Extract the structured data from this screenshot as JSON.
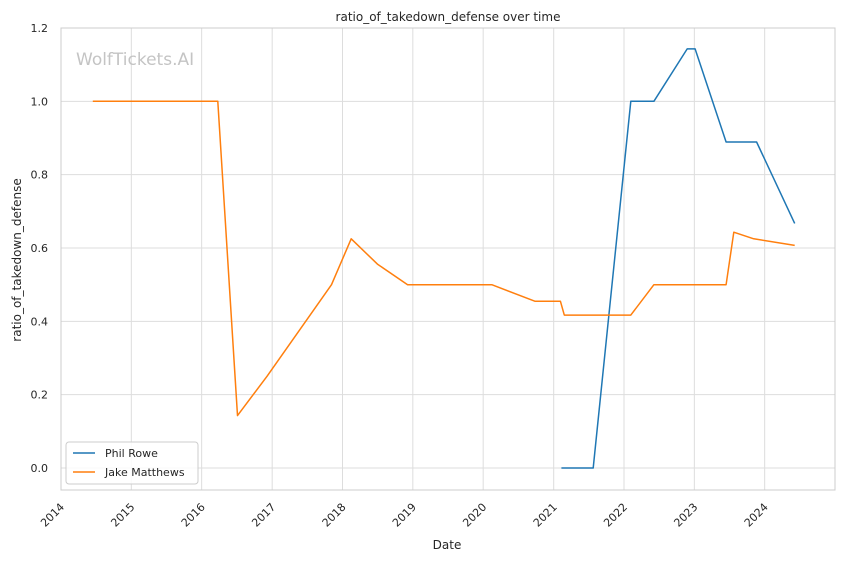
{
  "watermark": "WolfTickets.AI",
  "chart_data": {
    "type": "line",
    "title": "ratio_of_takedown_defense over time",
    "xlabel": "Date",
    "ylabel": "ratio_of_takedown_defense",
    "xlim": [
      "2014-01-01",
      "2024-12-31"
    ],
    "ylim": [
      -0.06,
      1.2
    ],
    "x_ticks": [
      "2014",
      "2015",
      "2016",
      "2017",
      "2018",
      "2019",
      "2020",
      "2021",
      "2022",
      "2023",
      "2024"
    ],
    "y_ticks": [
      "0.0",
      "0.2",
      "0.4",
      "0.6",
      "0.8",
      "1.0",
      "1.2"
    ],
    "grid": true,
    "legend_position": "lower-left",
    "series": [
      {
        "name": "Phil Rowe",
        "color": "#1f77b4",
        "x": [
          "2021-02-10",
          "2021-07-25",
          "2022-02-05",
          "2022-06-05",
          "2022-11-25",
          "2023-01-05",
          "2023-06-15",
          "2023-11-20",
          "2024-06-05"
        ],
        "y": [
          0.0,
          0.0,
          1.0,
          1.0,
          1.143,
          1.143,
          0.889,
          0.889,
          0.667
        ]
      },
      {
        "name": "Jake Matthews",
        "color": "#ff7f0e",
        "x": [
          "2014-06-15",
          "2016-03-25",
          "2016-07-05",
          "2016-12-05",
          "2017-11-05",
          "2018-02-15",
          "2018-07-01",
          "2018-12-05",
          "2019-04-15",
          "2020-02-15",
          "2020-09-25",
          "2021-02-05",
          "2021-02-25",
          "2021-07-05",
          "2022-02-05",
          "2022-06-05",
          "2023-06-15",
          "2023-07-25",
          "2023-11-05",
          "2024-06-05"
        ],
        "y": [
          1.0,
          1.0,
          0.143,
          0.25,
          0.5,
          0.625,
          0.556,
          0.5,
          0.5,
          0.5,
          0.455,
          0.455,
          0.417,
          0.417,
          0.417,
          0.5,
          0.5,
          0.643,
          0.625,
          0.607
        ]
      }
    ]
  }
}
